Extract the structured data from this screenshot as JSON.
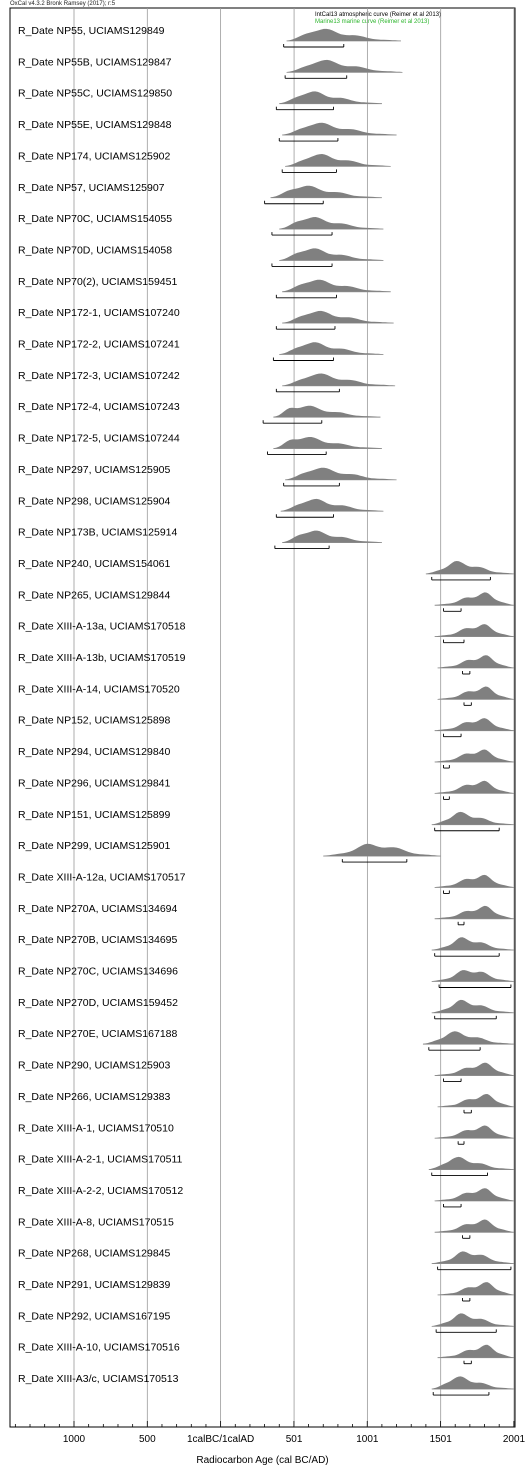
{
  "header": {
    "program": "OxCal v4.3.2 Bronk Ramsey (2017); r:5"
  },
  "legend": {
    "atmospheric": "IntCal13 atmospheric curve (Reimer et al 2013)",
    "marine": "Marine13 marine curve (Reimer et al 2013)"
  },
  "colors": {
    "distribution": "#808080",
    "marine_text": "#2db52d",
    "grid": "#9a9a9a"
  },
  "chart_data": {
    "type": "ridgeline",
    "xlabel": "Radiocarbon Age (cal BC/AD)",
    "x_tick_labels": [
      "1000",
      "500",
      "1calBC/1calAD",
      "501",
      "1001",
      "1501",
      "2001"
    ],
    "x_tick_values": [
      -1000,
      -500,
      0,
      501,
      1001,
      1501,
      2001
    ],
    "xlim": [
      -1400,
      2001
    ],
    "grid": true,
    "series": [
      {
        "label": "R_Date NP55, UCIAMS129849",
        "prior": [
          450,
          1230
        ],
        "peak": 640,
        "range": [
          430,
          840
        ]
      },
      {
        "label": "R_Date NP55B, UCIAMS129847",
        "prior": [
          450,
          1240
        ],
        "peak": 660,
        "range": [
          440,
          860
        ]
      },
      {
        "label": "R_Date NP55C, UCIAMS129850",
        "prior": [
          400,
          1100
        ],
        "peak": 580,
        "range": [
          380,
          770
        ]
      },
      {
        "label": "R_Date NP55E, UCIAMS129848",
        "prior": [
          420,
          1200
        ],
        "peak": 620,
        "range": [
          400,
          800
        ]
      },
      {
        "label": "R_Date NP174, UCIAMS125902",
        "prior": [
          440,
          1160
        ],
        "peak": 630,
        "range": [
          420,
          790
        ]
      },
      {
        "label": "R_Date NP57, UCIAMS125907",
        "prior": [
          340,
          1100
        ],
        "peak": 520,
        "range": [
          300,
          700
        ]
      },
      {
        "label": "R_Date NP70C, UCIAMS154055",
        "prior": [
          400,
          1110
        ],
        "peak": 570,
        "range": [
          350,
          760
        ]
      },
      {
        "label": "R_Date NP70D, UCIAMS154058",
        "prior": [
          400,
          1110
        ],
        "peak": 570,
        "range": [
          350,
          760
        ]
      },
      {
        "label": "R_Date NP70(2), UCIAMS159451",
        "prior": [
          420,
          1160
        ],
        "peak": 600,
        "range": [
          380,
          790
        ]
      },
      {
        "label": "R_Date NP172-1, UCIAMS107240",
        "prior": [
          420,
          1180
        ],
        "peak": 610,
        "range": [
          380,
          780
        ]
      },
      {
        "label": "R_Date NP172-2, UCIAMS107241",
        "prior": [
          400,
          1110
        ],
        "peak": 580,
        "range": [
          360,
          770
        ]
      },
      {
        "label": "R_Date NP172-3, UCIAMS107242",
        "prior": [
          420,
          1190
        ],
        "peak": 620,
        "range": [
          380,
          810
        ]
      },
      {
        "label": "R_Date NP172-4, UCIAMS107243",
        "prior": [
          360,
          1090
        ],
        "peak": 500,
        "range": [
          290,
          690
        ]
      },
      {
        "label": "R_Date NP172-5, UCIAMS107244",
        "prior": [
          360,
          1100
        ],
        "peak": 510,
        "range": [
          320,
          720
        ]
      },
      {
        "label": "R_Date NP297, UCIAMS125905",
        "prior": [
          440,
          1200
        ],
        "peak": 630,
        "range": [
          430,
          810
        ]
      },
      {
        "label": "R_Date NP298, UCIAMS125904",
        "prior": [
          410,
          1110
        ],
        "peak": 590,
        "range": [
          380,
          770
        ]
      },
      {
        "label": "R_Date NP173B, UCIAMS125914",
        "prior": [
          420,
          1100
        ],
        "peak": 580,
        "range": [
          370,
          740
        ]
      },
      {
        "label": "R_Date NP240, UCIAMS154061",
        "prior": [
          1400,
          2001
        ],
        "peak": 1600,
        "range": [
          1440,
          1840
        ]
      },
      {
        "label": "R_Date NP265, UCIAMS129844",
        "prior": [
          1460,
          2001
        ],
        "peak": 1800,
        "range": [
          1520,
          1640
        ]
      },
      {
        "label": "R_Date XIII-A-13a, UCIAMS170518",
        "prior": [
          1460,
          2001
        ],
        "peak": 1780,
        "range": [
          1520,
          1660
        ]
      },
      {
        "label": "R_Date XIII-A-13b, UCIAMS170519",
        "prior": [
          1480,
          2001
        ],
        "peak": 1800,
        "range": [
          1650,
          1700
        ]
      },
      {
        "label": "R_Date XIII-A-14, UCIAMS170520",
        "prior": [
          1480,
          2001
        ],
        "peak": 1800,
        "range": [
          1660,
          1710
        ]
      },
      {
        "label": "R_Date NP152, UCIAMS125898",
        "prior": [
          1460,
          2001
        ],
        "peak": 1780,
        "range": [
          1520,
          1640
        ]
      },
      {
        "label": "R_Date NP294, UCIAMS129840",
        "prior": [
          1460,
          2001
        ],
        "peak": 1780,
        "range": [
          1520,
          1560
        ]
      },
      {
        "label": "R_Date NP296, UCIAMS129841",
        "prior": [
          1460,
          2001
        ],
        "peak": 1780,
        "range": [
          1520,
          1560
        ]
      },
      {
        "label": "R_Date NP151, UCIAMS125899",
        "prior": [
          1440,
          2001
        ],
        "peak": 1620,
        "range": [
          1460,
          1900
        ]
      },
      {
        "label": "R_Date NP299, UCIAMS125901",
        "prior": [
          700,
          1500
        ],
        "peak": 1040,
        "range": [
          830,
          1270
        ]
      },
      {
        "label": "R_Date XIII-A-12a, UCIAMS170517",
        "prior": [
          1460,
          2001
        ],
        "peak": 1780,
        "range": [
          1520,
          1560
        ]
      },
      {
        "label": "R_Date NP270A, UCIAMS134694",
        "prior": [
          1460,
          2001
        ],
        "peak": 1800,
        "range": [
          1620,
          1660
        ]
      },
      {
        "label": "R_Date NP270B, UCIAMS134695",
        "prior": [
          1440,
          2001
        ],
        "peak": 1650,
        "range": [
          1460,
          1900
        ]
      },
      {
        "label": "R_Date NP270C, UCIAMS134696",
        "prior": [
          1440,
          2001
        ],
        "peak": 1700,
        "range": [
          1490,
          1980
        ]
      },
      {
        "label": "R_Date NP270D, UCIAMS159452",
        "prior": [
          1440,
          2001
        ],
        "peak": 1640,
        "range": [
          1460,
          1880
        ]
      },
      {
        "label": "R_Date NP270E, UCIAMS167188",
        "prior": [
          1380,
          2001
        ],
        "peak": 1580,
        "range": [
          1420,
          1770
        ]
      },
      {
        "label": "R_Date NP290, UCIAMS125903",
        "prior": [
          1460,
          2001
        ],
        "peak": 1800,
        "range": [
          1520,
          1640
        ]
      },
      {
        "label": "R_Date NP266, UCIAMS129383",
        "prior": [
          1480,
          2001
        ],
        "peak": 1810,
        "range": [
          1660,
          1710
        ]
      },
      {
        "label": "R_Date XIII-A-1, UCIAMS170510",
        "prior": [
          1460,
          2001
        ],
        "peak": 1790,
        "range": [
          1620,
          1660
        ]
      },
      {
        "label": "R_Date XIII-A-2-1, UCIAMS170511",
        "prior": [
          1420,
          2001
        ],
        "peak": 1590,
        "range": [
          1440,
          1820
        ]
      },
      {
        "label": "R_Date XIII-A-2-2, UCIAMS170512",
        "prior": [
          1460,
          2001
        ],
        "peak": 1790,
        "range": [
          1520,
          1640
        ]
      },
      {
        "label": "R_Date XIII-A-8, UCIAMS170515",
        "prior": [
          1460,
          2001
        ],
        "peak": 1790,
        "range": [
          1650,
          1700
        ]
      },
      {
        "label": "R_Date NP268, UCIAMS129845",
        "prior": [
          1440,
          2001
        ],
        "peak": 1680,
        "range": [
          1480,
          1980
        ]
      },
      {
        "label": "R_Date NP291, UCIAMS129839",
        "prior": [
          1480,
          2001
        ],
        "peak": 1810,
        "range": [
          1650,
          1700
        ]
      },
      {
        "label": "R_Date NP292, UCIAMS167195",
        "prior": [
          1440,
          2001
        ],
        "peak": 1640,
        "range": [
          1470,
          1880
        ]
      },
      {
        "label": "R_Date XIII-A-10, UCIAMS170516",
        "prior": [
          1480,
          2001
        ],
        "peak": 1810,
        "range": [
          1660,
          1710
        ]
      },
      {
        "label": "R_Date XIII-A3/c, UCIAMS170513",
        "prior": [
          1440,
          2001
        ],
        "peak": 1600,
        "range": [
          1450,
          1830
        ]
      }
    ]
  }
}
